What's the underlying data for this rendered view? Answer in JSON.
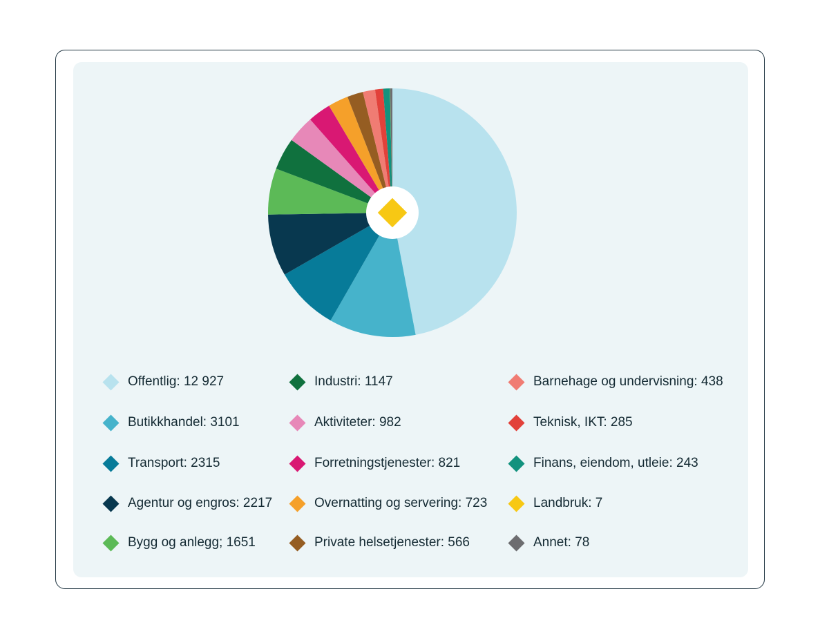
{
  "center_icon": "diamond-icon",
  "center_color": "#f7c814",
  "chart_data": {
    "type": "pie",
    "grid": false,
    "legend_position": "bottom",
    "slices": [
      {
        "label": "Offentlig: 12 927",
        "category": "Offentlig",
        "value": 12927,
        "color": "#b8e2ee"
      },
      {
        "label": "Butikkhandel: 3101",
        "category": "Butikkhandel",
        "value": 3101,
        "color": "#46b3cb"
      },
      {
        "label": "Transport: 2315",
        "category": "Transport",
        "value": 2315,
        "color": "#077b99"
      },
      {
        "label": "Agentur og engros: 2217",
        "category": "Agentur og engros",
        "value": 2217,
        "color": "#08384f"
      },
      {
        "label": "Bygg og anlegg; 1651",
        "category": "Bygg og anlegg",
        "value": 1651,
        "color": "#5cba57"
      },
      {
        "label": "Industri: 1147",
        "category": "Industri",
        "value": 1147,
        "color": "#10713e"
      },
      {
        "label": "Aktiviteter: 982",
        "category": "Aktiviteter",
        "value": 982,
        "color": "#e788b8"
      },
      {
        "label": "Forretningstjenester: 821",
        "category": "Forretningstjenester",
        "value": 821,
        "color": "#d91873"
      },
      {
        "label": "Overnatting og servering: 723",
        "category": "Overnatting og servering",
        "value": 723,
        "color": "#f5a02a"
      },
      {
        "label": "Private helsetjenester: 566",
        "category": "Private helsetjenester",
        "value": 566,
        "color": "#955d22"
      },
      {
        "label": "Barnehage og undervisning: 438",
        "category": "Barnehage og undervisning",
        "value": 438,
        "color": "#f07c73"
      },
      {
        "label": "Teknisk, IKT: 285",
        "category": "Teknisk, IKT",
        "value": 285,
        "color": "#e2413a"
      },
      {
        "label": "Finans, eiendom, utleie: 243",
        "category": "Finans, eiendom, utleie",
        "value": 243,
        "color": "#12927e"
      },
      {
        "label": "Landbruk: 7",
        "category": "Landbruk",
        "value": 7,
        "color": "#f7c814"
      },
      {
        "label": "Annet: 78",
        "category": "Annet",
        "value": 78,
        "color": "#6d6d70"
      }
    ]
  }
}
